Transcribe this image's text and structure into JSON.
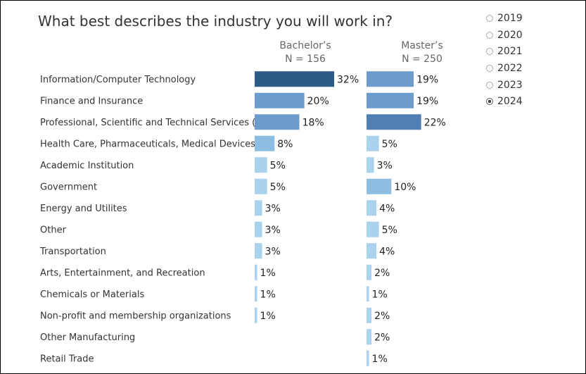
{
  "title": "What best describes the industry you will work in?",
  "headers": {
    "bachelors_name": "Bachelor’s",
    "bachelors_n": "N = 156",
    "masters_name": "Master’s",
    "masters_n": "N = 250"
  },
  "year_filter": {
    "options": [
      "2019",
      "2020",
      "2021",
      "2022",
      "2023",
      "2024"
    ],
    "selected": "2024"
  },
  "colors": {
    "dark": "#2e5a88",
    "mid": "#4f7fb3",
    "midlight": "#6b9ccb",
    "light": "#8dbde0",
    "pale": "#aad2ec"
  },
  "chart_data": {
    "type": "bar",
    "orientation": "horizontal",
    "title": "What best describes the industry you will work in?",
    "categories": [
      "Information/Computer Technology",
      "Finance and Insurance",
      "Professional, Scientific and Technical Services (in..",
      "Health Care, Pharmaceuticals, Medical Devices",
      "Academic Institution",
      "Government",
      "Energy and Utilites",
      "Other",
      "Transportation",
      "Arts, Entertainment, and Recreation",
      "Chemicals or Materials",
      "Non-profit and membership organizations",
      "Other Manufacturing",
      "Retail Trade"
    ],
    "series": [
      {
        "name": "Bachelor’s",
        "values": [
          32,
          20,
          18,
          8,
          5,
          5,
          3,
          3,
          3,
          1,
          1,
          1,
          null,
          null
        ]
      },
      {
        "name": "Master’s",
        "values": [
          19,
          19,
          22,
          5,
          3,
          10,
          4,
          5,
          4,
          2,
          1,
          2,
          2,
          1
        ]
      }
    ],
    "value_suffix": "%"
  }
}
